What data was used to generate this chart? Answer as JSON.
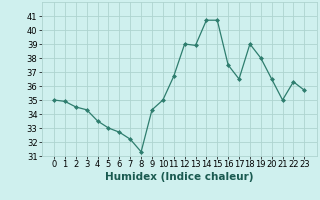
{
  "x": [
    0,
    1,
    2,
    3,
    4,
    5,
    6,
    7,
    8,
    9,
    10,
    11,
    12,
    13,
    14,
    15,
    16,
    17,
    18,
    19,
    20,
    21,
    22,
    23
  ],
  "y": [
    35,
    34.9,
    34.5,
    34.3,
    33.5,
    33.0,
    32.7,
    32.2,
    31.3,
    34.3,
    35.0,
    36.7,
    39.0,
    38.9,
    40.7,
    40.7,
    37.5,
    36.5,
    39.0,
    38.0,
    36.5,
    35.0,
    36.3,
    35.7
  ],
  "line_color": "#2e7d6e",
  "marker": "D",
  "marker_size": 2.0,
  "bg_color": "#cff0ee",
  "grid_color": "#aed4d0",
  "xlabel": "Humidex (Indice chaleur)",
  "ylim": [
    31,
    42
  ],
  "yticks": [
    31,
    32,
    33,
    34,
    35,
    36,
    37,
    38,
    39,
    40,
    41
  ],
  "xticks": [
    0,
    1,
    2,
    3,
    4,
    5,
    6,
    7,
    8,
    9,
    10,
    11,
    12,
    13,
    14,
    15,
    16,
    17,
    18,
    19,
    20,
    21,
    22,
    23
  ],
  "label_fontsize": 7.5,
  "tick_fontsize": 6.0
}
